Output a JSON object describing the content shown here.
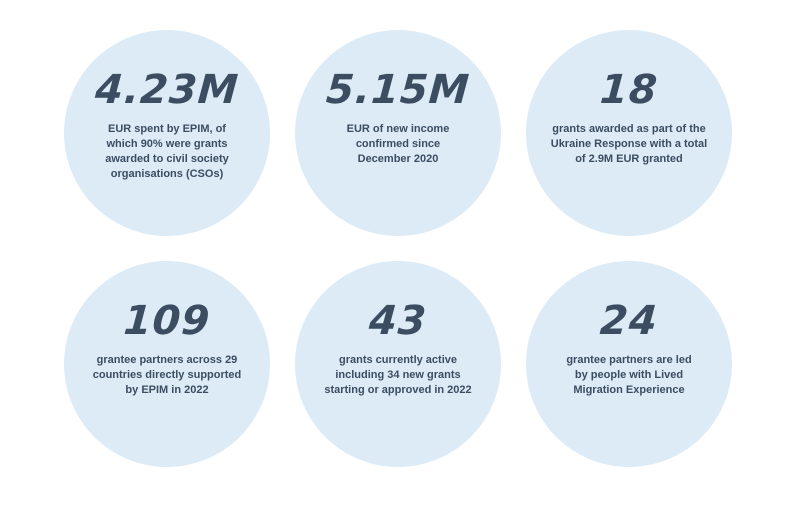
{
  "stats": [
    {
      "number": "4.23M",
      "description": "EUR spent by EPIM, of which 90% were grants awarded to civil society organisations (CSOs)"
    },
    {
      "number": "5.15M",
      "description": "EUR of new income confirmed since December 2020"
    },
    {
      "number": "18",
      "description": "grants awarded as part of the Ukraine Response with a total of 2.9M EUR granted"
    },
    {
      "number": "109",
      "description": "grantee partners across 29 countries directly supported by EPIM in 2022"
    },
    {
      "number": "43",
      "description": "grants currently active including 34 new grants starting or approved in 2022"
    },
    {
      "number": "24",
      "description": "grantee partners are led by people with Lived Migration Experience"
    }
  ],
  "colors": {
    "circle_fill": "#dcebf5",
    "text": "#3c4d62",
    "background": "#ffffff"
  }
}
